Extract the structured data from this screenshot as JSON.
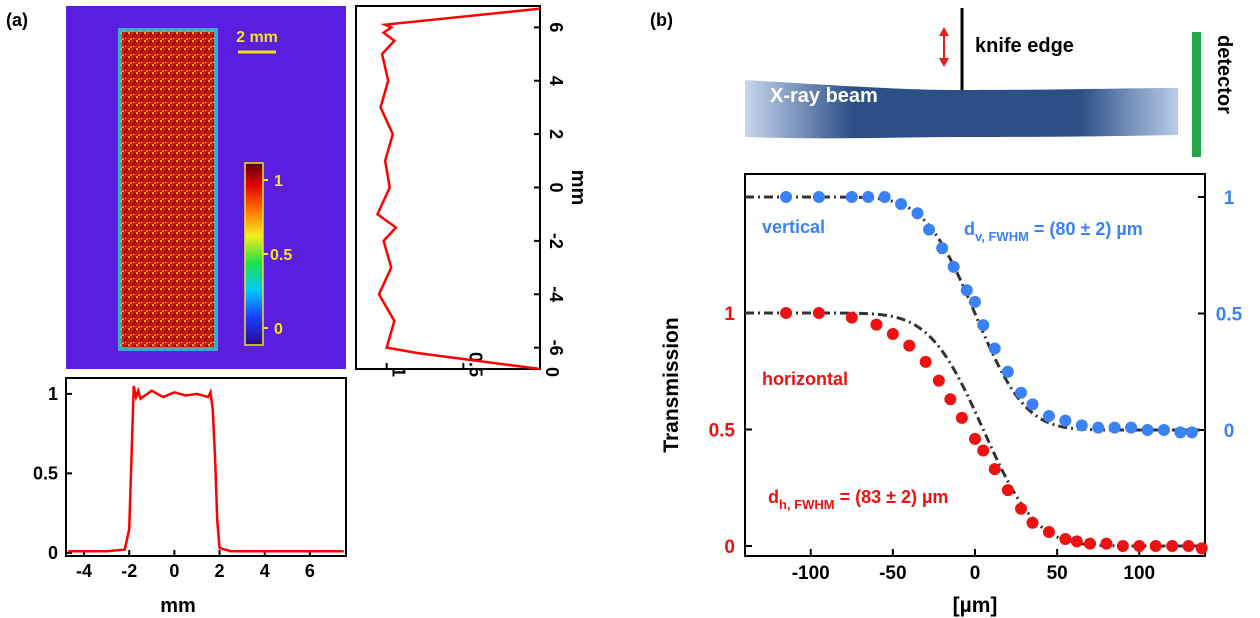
{
  "panel_a_label": "(a)",
  "panel_b_label": "(b)",
  "image": {
    "scale_bar_label": "2 mm",
    "colorbar_ticks": [
      "1",
      "0.5",
      "0"
    ]
  },
  "schematic": {
    "beam_label": "X-ray beam",
    "knife_label": "knife edge",
    "detector_label": "detector",
    "colors": {
      "beam": "#2c4f86",
      "detector": "#22a84a",
      "arrow": "#e02020"
    }
  },
  "chart_data": [
    {
      "type": "line",
      "id": "horizontal_profile",
      "xlabel": "mm",
      "ylabel": "",
      "xlim": [
        -4.8,
        7.6
      ],
      "ylim": [
        -0.02,
        1.1
      ],
      "xticks": [
        "-4",
        "-2",
        "0",
        "2",
        "4",
        "6"
      ],
      "yticks": [
        "0",
        "0.5",
        "1"
      ],
      "series": [
        {
          "color": "#ff0000",
          "x": [
            -4.7,
            -3.0,
            -2.2,
            -2.0,
            -1.9,
            -1.8,
            -1.7,
            -1.6,
            -1.5,
            -1.0,
            -0.5,
            0.0,
            0.5,
            1.0,
            1.5,
            1.6,
            1.7,
            1.8,
            1.9,
            2.0,
            2.5,
            4.0,
            6.0,
            7.5
          ],
          "y": [
            0.01,
            0.01,
            0.02,
            0.15,
            0.6,
            1.05,
            0.98,
            1.02,
            0.97,
            1.02,
            0.98,
            1.01,
            0.99,
            1.0,
            0.98,
            1.01,
            0.9,
            0.6,
            0.2,
            0.03,
            0.01,
            0.01,
            0.01,
            0.01
          ]
        }
      ]
    },
    {
      "type": "line",
      "id": "vertical_profile",
      "xlabel": "",
      "ylabel": "mm",
      "xlim": [
        1.2,
        0.0
      ],
      "ylim": [
        -6.8,
        6.8
      ],
      "xticks": [
        "1",
        "0.5",
        "0"
      ],
      "yticks": [
        "-6",
        "-4",
        "-2",
        "0",
        "2",
        "4",
        "6"
      ],
      "series": [
        {
          "color": "#ff0000",
          "x": [
            0.0,
            0.8,
            1.0,
            0.95,
            1.05,
            0.97,
            1.02,
            0.94,
            1.06,
            0.98,
            1.01,
            0.96,
            1.04,
            0.99,
            1.03,
            0.95,
            1.02,
            0.97,
            1.01,
            0.0
          ],
          "y": [
            -6.8,
            -6.2,
            -6.0,
            -5.0,
            -4.0,
            -3.0,
            -2.0,
            -1.5,
            -1.0,
            0.0,
            1.0,
            2.0,
            3.0,
            4.0,
            5.0,
            5.5,
            5.8,
            6.0,
            6.1,
            6.7
          ]
        }
      ]
    },
    {
      "type": "scatter",
      "id": "knife_edge_scan",
      "xlabel": "[µm]",
      "ylabel": "Transmission",
      "xlim": [
        -140,
        140
      ],
      "left_yticks": [
        "0",
        "0.5",
        "1"
      ],
      "right_yticks": [
        "0",
        "0.5",
        "1"
      ],
      "xticks": [
        "-100",
        "-50",
        "0",
        "50",
        "100"
      ],
      "series": [
        {
          "name": "vertical",
          "color": "#3b82f6",
          "axis": "right",
          "annotation": "d",
          "annotation_sub": "v, FWHM",
          "annotation_tail": " = (80 ± 2) µm",
          "x": [
            -115,
            -95,
            -75,
            -65,
            -55,
            -45,
            -35,
            -28,
            -20,
            -13,
            -5,
            0,
            5,
            12,
            20,
            28,
            35,
            45,
            55,
            65,
            75,
            85,
            95,
            105,
            115,
            125,
            132
          ],
          "y": [
            1.0,
            1.0,
            1.0,
            1.0,
            1.0,
            0.97,
            0.93,
            0.86,
            0.78,
            0.7,
            0.6,
            0.55,
            0.45,
            0.35,
            0.25,
            0.16,
            0.11,
            0.06,
            0.04,
            0.02,
            0.01,
            0.01,
            0.01,
            0.0,
            0.0,
            -0.01,
            -0.01
          ]
        },
        {
          "name": "horizontal",
          "color": "#ee1111",
          "axis": "left",
          "annotation": "d",
          "annotation_sub": "h, FWHM",
          "annotation_tail": " = (83 ± 2) µm",
          "x": [
            -115,
            -95,
            -75,
            -60,
            -50,
            -40,
            -30,
            -22,
            -15,
            -8,
            0,
            5,
            12,
            20,
            28,
            35,
            45,
            55,
            62,
            70,
            80,
            90,
            100,
            110,
            120,
            130,
            138
          ],
          "y": [
            1.0,
            1.0,
            0.98,
            0.95,
            0.91,
            0.86,
            0.79,
            0.71,
            0.63,
            0.55,
            0.46,
            0.41,
            0.33,
            0.24,
            0.16,
            0.1,
            0.06,
            0.03,
            0.02,
            0.01,
            0.01,
            0.0,
            0.0,
            0.0,
            0.0,
            0.0,
            -0.01
          ]
        }
      ]
    }
  ]
}
